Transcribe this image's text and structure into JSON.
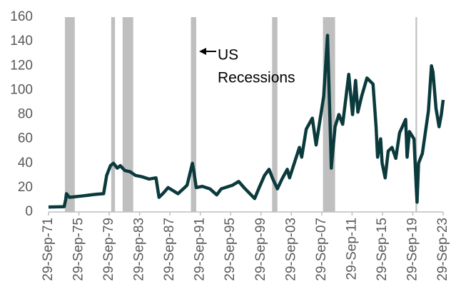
{
  "chart_data": {
    "type": "line",
    "xlim": [
      1971.74,
      2023.74
    ],
    "ylim": [
      0,
      160
    ],
    "yticks": [
      0,
      20,
      40,
      60,
      80,
      100,
      120,
      140,
      160
    ],
    "xticks": [
      {
        "value": 1971.74,
        "label": "29-Sep-71"
      },
      {
        "value": 1975.74,
        "label": "29-Sep-75"
      },
      {
        "value": 1979.74,
        "label": "29-Sep-79"
      },
      {
        "value": 1983.74,
        "label": "29-Sep-83"
      },
      {
        "value": 1987.74,
        "label": "29-Sep-87"
      },
      {
        "value": 1991.74,
        "label": "29-Sep-91"
      },
      {
        "value": 1995.74,
        "label": "29-Sep-95"
      },
      {
        "value": 1999.74,
        "label": "29-Sep-99"
      },
      {
        "value": 2003.74,
        "label": "29-Sep-03"
      },
      {
        "value": 2007.74,
        "label": "29-Sep-07"
      },
      {
        "value": 2011.74,
        "label": "29-Sep-11"
      },
      {
        "value": 2015.74,
        "label": "29-Sep-15"
      },
      {
        "value": 2019.74,
        "label": "29-Sep-19"
      },
      {
        "value": 2023.74,
        "label": "29-Sep-23"
      }
    ],
    "grid": false,
    "recession_color": "#bfbfbf",
    "recessions": [
      [
        1973.9,
        1975.2
      ],
      [
        1980.0,
        1980.5
      ],
      [
        1981.5,
        1982.9
      ],
      [
        1990.5,
        1991.2
      ],
      [
        2001.2,
        2001.9
      ],
      [
        2007.9,
        2009.5
      ],
      [
        2020.1,
        2020.3
      ]
    ],
    "annotation": [
      "US",
      "Recessions"
    ],
    "series": [
      {
        "color": "#0b3a3c",
        "x": [
          1971.74,
          1973.8,
          1974.0,
          1974.1,
          1974.5,
          1976,
          1978,
          1979.0,
          1979.4,
          1979.9,
          1980.3,
          1980.8,
          1981.2,
          1981.8,
          1982.5,
          1983.2,
          1984,
          1985,
          1985.9,
          1986.3,
          1986.8,
          1987.5,
          1988.8,
          1989.5,
          1990.0,
          1990.7,
          1990.9,
          1991.2,
          1992,
          1993,
          1993.9,
          1994.5,
          1996,
          1996.8,
          1997.5,
          1998.9,
          1999.5,
          2000.2,
          2000.8,
          2001.3,
          2001.9,
          2002.5,
          2003.2,
          2003.5,
          2004.8,
          2005.1,
          2005.7,
          2006.5,
          2007.0,
          2007.5,
          2008.0,
          2008.5,
          2008.9,
          2009.0,
          2009.5,
          2010,
          2010.5,
          2011.3,
          2011.8,
          2012.2,
          2012.5,
          2013,
          2013.7,
          2014.5,
          2014.9,
          2015.1,
          2015.5,
          2015.7,
          2016.1,
          2016.5,
          2017,
          2017.5,
          2018.0,
          2018.8,
          2018.99,
          2019.3,
          2019.9,
          2020.2,
          2020.3,
          2020.5,
          2021.0,
          2021.8,
          2022.2,
          2022.4,
          2022.8,
          2023.2,
          2023.5,
          2023.74
        ],
        "values": [
          4,
          4.3,
          10,
          15,
          12,
          13,
          14.5,
          15,
          30,
          38,
          40,
          36,
          38,
          34,
          33,
          30,
          29,
          27,
          28,
          12,
          15,
          20,
          15,
          19,
          22,
          40,
          33,
          20,
          21,
          19,
          14,
          19,
          22,
          25,
          20,
          11,
          20,
          30,
          35,
          27,
          19,
          27,
          35,
          28,
          53,
          45,
          68,
          77,
          55,
          75,
          95,
          145,
          60,
          36,
          70,
          80,
          72,
          113,
          80,
          108,
          82,
          95,
          110,
          105,
          70,
          45,
          60,
          40,
          28,
          50,
          53,
          44,
          65,
          76,
          45,
          66,
          60,
          20,
          8,
          40,
          48,
          83,
          120,
          115,
          85,
          70,
          80,
          92
        ]
      }
    ]
  }
}
